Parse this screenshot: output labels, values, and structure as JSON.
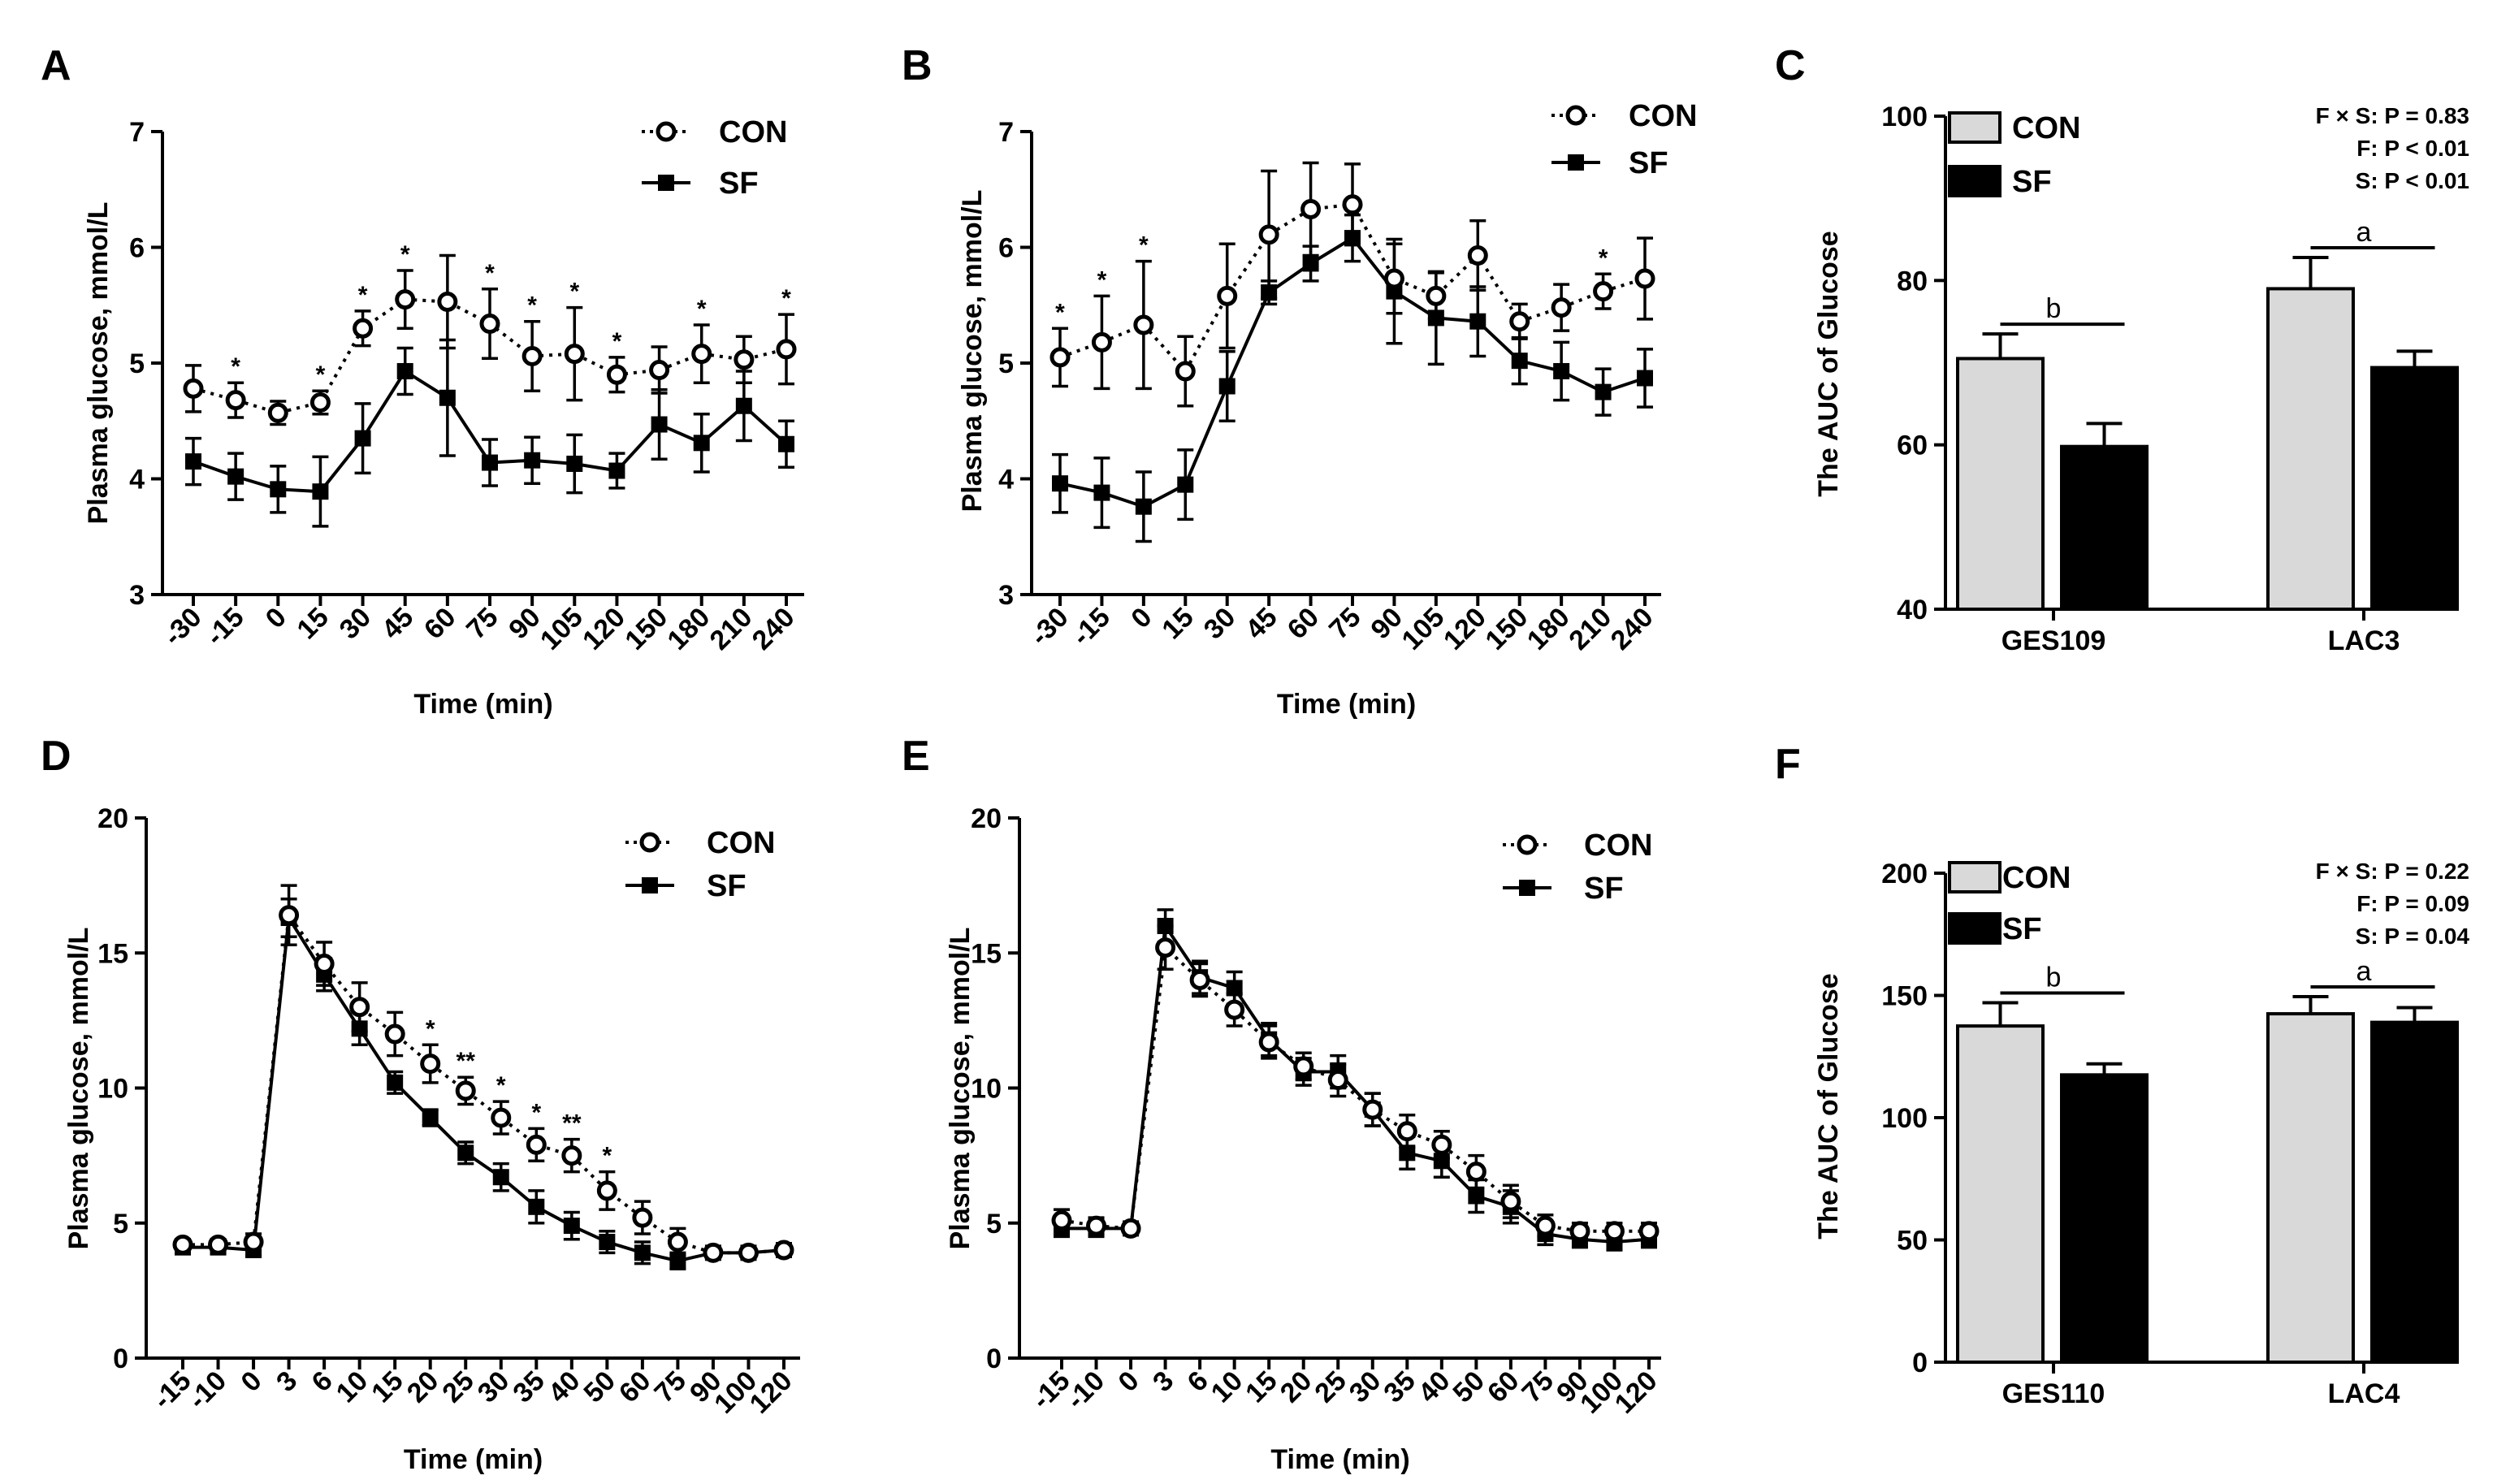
{
  "figure": {
    "panels": [
      "A",
      "B",
      "C",
      "D",
      "E",
      "F"
    ]
  },
  "chart_data": [
    {
      "id": "A",
      "type": "line",
      "letter": "A",
      "xlabel": "Time (min)",
      "ylabel": "Plasma glucose, mmol/L",
      "ylim": [
        3,
        7
      ],
      "yticks": [
        "3",
        "4",
        "5",
        "6",
        "7"
      ],
      "categories": [
        "-30",
        "-15",
        "0",
        "15",
        "30",
        "45",
        "60",
        "75",
        "90",
        "105",
        "120",
        "150",
        "180",
        "210",
        "240"
      ],
      "series": [
        {
          "name": "CON",
          "style": "open-circle-dotted",
          "values": [
            4.78,
            4.68,
            4.57,
            4.66,
            5.3,
            5.55,
            5.53,
            5.34,
            5.06,
            5.08,
            4.9,
            4.94,
            5.08,
            5.03,
            5.12
          ],
          "errors": [
            0.2,
            0.15,
            0.1,
            0.1,
            0.15,
            0.25,
            0.4,
            0.3,
            0.3,
            0.4,
            0.15,
            0.2,
            0.25,
            0.2,
            0.3
          ]
        },
        {
          "name": "SF",
          "style": "filled-square-solid",
          "values": [
            4.15,
            4.02,
            3.91,
            3.89,
            4.35,
            4.93,
            4.7,
            4.14,
            4.16,
            4.13,
            4.07,
            4.47,
            4.31,
            4.63,
            4.3
          ],
          "errors": [
            0.2,
            0.2,
            0.2,
            0.3,
            0.3,
            0.2,
            0.5,
            0.2,
            0.2,
            0.25,
            0.15,
            0.3,
            0.25,
            0.3,
            0.2
          ]
        }
      ],
      "stars": [
        "",
        "*",
        "",
        "*",
        "*",
        "*",
        "",
        "*",
        "*",
        "*",
        "*",
        "",
        "*",
        "",
        "*"
      ],
      "legend": [
        "CON",
        "SF"
      ]
    },
    {
      "id": "B",
      "type": "line",
      "letter": "B",
      "xlabel": "Time (min)",
      "ylabel": "Plasma glucose, mmol/L",
      "ylim": [
        3,
        7
      ],
      "yticks": [
        "3",
        "4",
        "5",
        "6",
        "7"
      ],
      "categories": [
        "-30",
        "-15",
        "0",
        "15",
        "30",
        "45",
        "60",
        "75",
        "90",
        "105",
        "120",
        "150",
        "180",
        "210",
        "240"
      ],
      "series": [
        {
          "name": "CON",
          "style": "open-circle-dotted",
          "values": [
            5.05,
            5.18,
            5.33,
            4.93,
            5.58,
            6.11,
            6.33,
            6.37,
            5.73,
            5.58,
            5.93,
            5.36,
            5.48,
            5.62,
            5.73
          ],
          "errors": [
            0.25,
            0.4,
            0.55,
            0.3,
            0.45,
            0.55,
            0.4,
            0.35,
            0.3,
            0.2,
            0.3,
            0.15,
            0.2,
            0.15,
            0.35
          ]
        },
        {
          "name": "SF",
          "style": "filled-square-solid",
          "values": [
            3.96,
            3.88,
            3.76,
            3.95,
            4.8,
            5.61,
            5.86,
            6.08,
            5.62,
            5.39,
            5.36,
            5.02,
            4.93,
            4.75,
            4.87
          ],
          "errors": [
            0.25,
            0.3,
            0.3,
            0.3,
            0.3,
            0.1,
            0.15,
            0.2,
            0.45,
            0.4,
            0.3,
            0.2,
            0.25,
            0.2,
            0.25
          ]
        }
      ],
      "stars": [
        "*",
        "*",
        "*",
        "",
        "",
        "",
        "",
        "",
        "",
        "",
        "",
        "",
        "",
        "*",
        ""
      ],
      "legend": [
        "CON",
        "SF"
      ]
    },
    {
      "id": "C",
      "type": "bar",
      "letter": "C",
      "ylabel": "The AUC of Glucose",
      "ylim": [
        40,
        100
      ],
      "yticks": [
        "40",
        "60",
        "80",
        "100"
      ],
      "categories": [
        "GES109",
        "LAC3"
      ],
      "series": [
        {
          "name": "CON",
          "values": [
            70.5,
            79.0
          ],
          "errors": [
            3.0,
            3.8
          ]
        },
        {
          "name": "SF",
          "values": [
            59.8,
            69.4
          ],
          "errors": [
            2.8,
            2.0
          ]
        }
      ],
      "letters": [
        "b",
        "a"
      ],
      "stats": [
        "F × S: P = 0.83",
        "F: P < 0.01",
        "S: P < 0.01"
      ],
      "legend": [
        "CON",
        "SF"
      ]
    },
    {
      "id": "D",
      "type": "line",
      "letter": "D",
      "xlabel": "Time (min)",
      "ylabel": "Plasma glucose, mmol/L",
      "ylim": [
        0,
        20
      ],
      "yticks": [
        "0",
        "5",
        "10",
        "15",
        "20"
      ],
      "categories": [
        "-15",
        "-10",
        "0",
        "3",
        "6",
        "10",
        "15",
        "20",
        "25",
        "30",
        "35",
        "40",
        "50",
        "60",
        "75",
        "90",
        "100",
        "120"
      ],
      "series": [
        {
          "name": "CON",
          "style": "open-circle-dotted",
          "values": [
            4.2,
            4.2,
            4.3,
            16.4,
            14.6,
            13.0,
            12.0,
            10.9,
            9.9,
            8.9,
            7.9,
            7.5,
            6.2,
            5.2,
            4.3,
            3.9,
            3.9,
            4.0
          ],
          "errors": [
            0.2,
            0.2,
            0.3,
            1.1,
            0.8,
            0.9,
            0.8,
            0.7,
            0.5,
            0.6,
            0.6,
            0.6,
            0.7,
            0.6,
            0.5,
            0.2,
            0.2,
            0.2
          ]
        },
        {
          "name": "SF",
          "style": "filled-square-solid",
          "values": [
            4.1,
            4.1,
            4.0,
            16.3,
            14.2,
            12.2,
            10.2,
            8.9,
            7.6,
            6.7,
            5.6,
            4.9,
            4.3,
            3.9,
            3.6,
            3.9,
            3.9,
            4.0
          ],
          "errors": [
            0.2,
            0.2,
            0.2,
            0.7,
            0.6,
            0.6,
            0.4,
            0.3,
            0.4,
            0.5,
            0.6,
            0.5,
            0.4,
            0.4,
            0.3,
            0.2,
            0.2,
            0.2
          ]
        }
      ],
      "stars": [
        "",
        "",
        "",
        "",
        "",
        "",
        "",
        "*",
        "**",
        "*",
        "*",
        "**",
        "*",
        "",
        "",
        "",
        "",
        ""
      ],
      "legend": [
        "CON",
        "SF"
      ]
    },
    {
      "id": "E",
      "type": "line",
      "letter": "E",
      "xlabel": "Time (min)",
      "ylabel": "Plasma glucose, mmol/L",
      "ylim": [
        0,
        20
      ],
      "yticks": [
        "0",
        "5",
        "10",
        "15",
        "20"
      ],
      "categories": [
        "-15",
        "-10",
        "0",
        "3",
        "6",
        "10",
        "15",
        "20",
        "25",
        "30",
        "35",
        "40",
        "50",
        "60",
        "75",
        "90",
        "100",
        "120"
      ],
      "series": [
        {
          "name": "CON",
          "style": "open-circle-dotted",
          "values": [
            5.1,
            4.9,
            4.8,
            15.2,
            14.0,
            12.9,
            11.7,
            10.8,
            10.3,
            9.2,
            8.4,
            7.9,
            6.9,
            5.8,
            4.9,
            4.7,
            4.7,
            4.7
          ],
          "errors": [
            0.4,
            0.3,
            0.2,
            0.8,
            0.6,
            0.6,
            0.6,
            0.5,
            0.6,
            0.6,
            0.6,
            0.5,
            0.6,
            0.6,
            0.4,
            0.3,
            0.3,
            0.3
          ]
        },
        {
          "name": "SF",
          "style": "filled-square-solid",
          "values": [
            4.8,
            4.8,
            4.8,
            16.0,
            14.1,
            13.7,
            11.8,
            10.6,
            10.6,
            9.2,
            7.6,
            7.3,
            6.0,
            5.6,
            4.6,
            4.4,
            4.3,
            4.4
          ],
          "errors": [
            0.3,
            0.3,
            0.2,
            0.6,
            0.6,
            0.6,
            0.6,
            0.5,
            0.6,
            0.6,
            0.6,
            0.6,
            0.6,
            0.6,
            0.4,
            0.3,
            0.3,
            0.3
          ]
        }
      ],
      "stars": [],
      "legend": [
        "CON",
        "SF"
      ]
    },
    {
      "id": "F",
      "type": "bar",
      "letter": "F",
      "ylabel": "The AUC of Glucose",
      "ylim": [
        0,
        200
      ],
      "yticks": [
        "0",
        "50",
        "100",
        "150",
        "200"
      ],
      "categories": [
        "GES110",
        "LAC4"
      ],
      "series": [
        {
          "name": "CON",
          "values": [
            137.5,
            142.5
          ],
          "errors": [
            9.5,
            7.0
          ]
        },
        {
          "name": "SF",
          "values": [
            117.5,
            139.0
          ],
          "errors": [
            4.5,
            6.0
          ]
        }
      ],
      "letters": [
        "b",
        "a"
      ],
      "stats": [
        "F × S: P = 0.22",
        "F: P = 0.09",
        "S: P = 0.04"
      ],
      "legend": [
        "CON",
        "SF"
      ]
    }
  ]
}
